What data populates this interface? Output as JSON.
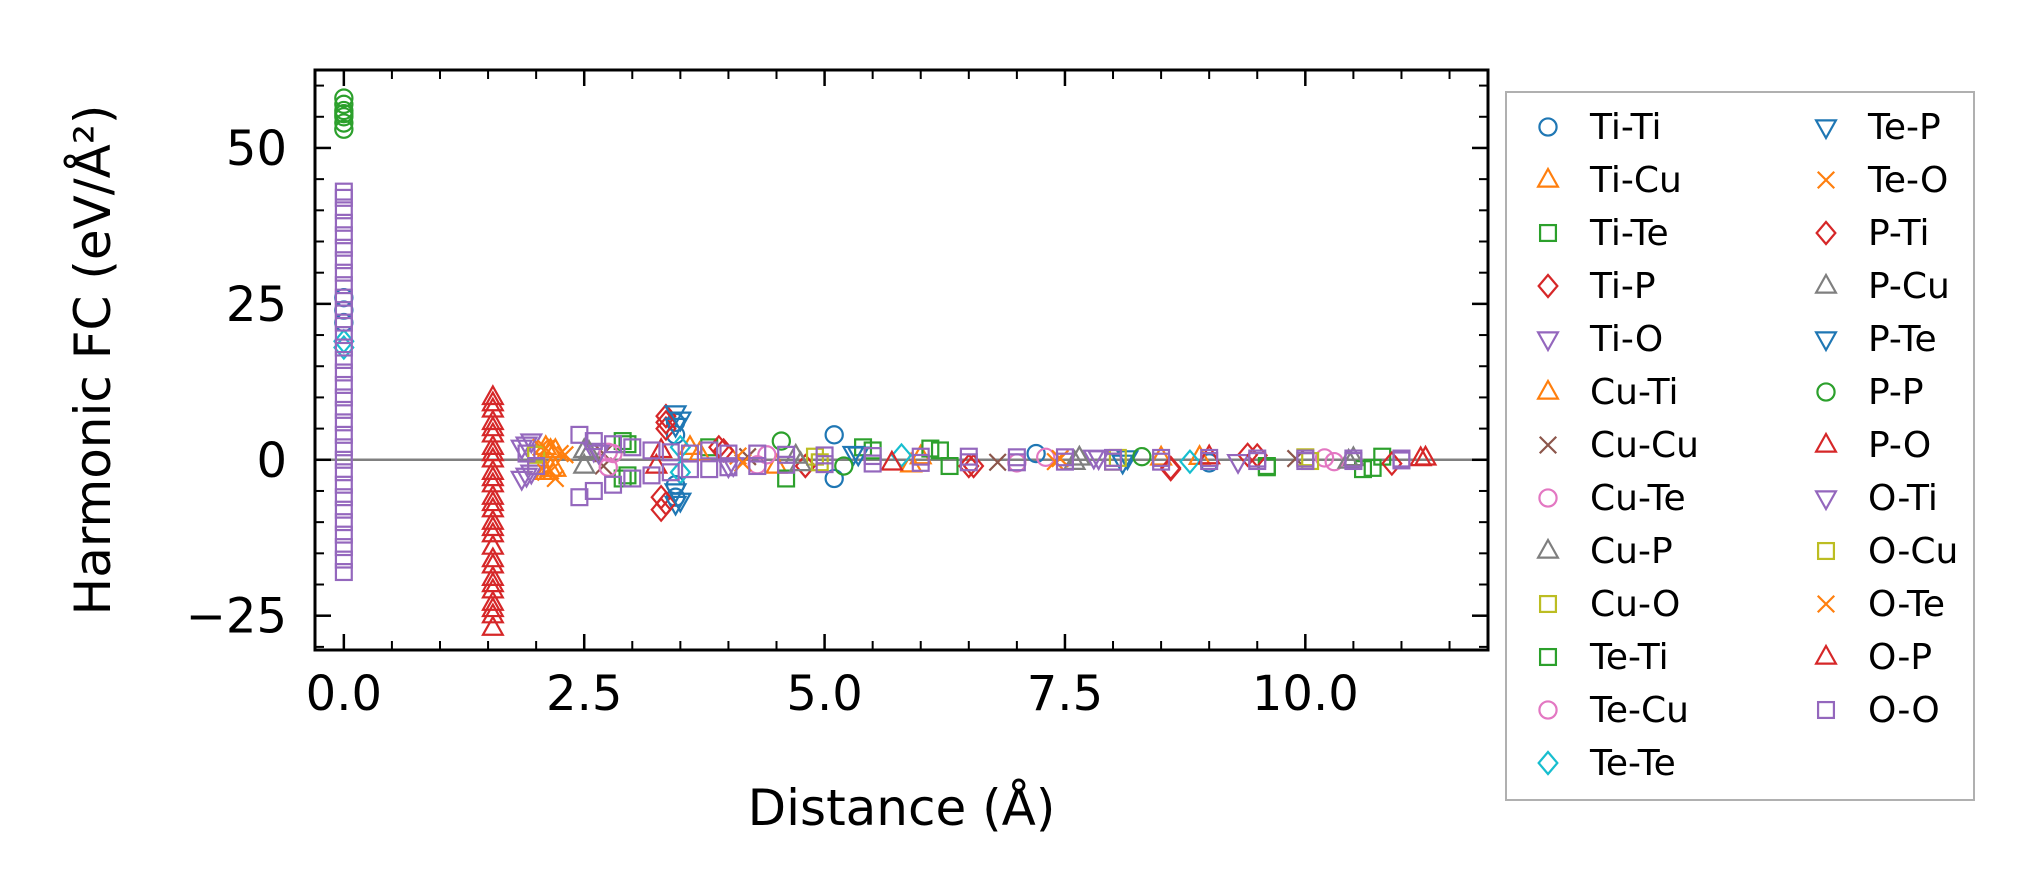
{
  "chart_data": {
    "type": "scatter",
    "xlabel": "Distance (Å)",
    "ylabel": "Harmonic FC (eV/Å²)",
    "xlim": [
      -0.3,
      11.9
    ],
    "ylim": [
      -30.5,
      62.5
    ],
    "xticks": [
      0.0,
      2.5,
      5.0,
      7.5,
      10.0
    ],
    "xtick_labels": [
      "0.0",
      "2.5",
      "5.0",
      "7.5",
      "10.0"
    ],
    "yticks": [
      50,
      25,
      0,
      -25
    ],
    "ytick_labels": [
      "50",
      "25",
      "0",
      "−25"
    ],
    "zero_line": 0,
    "legend_position": "outside-right",
    "legend_columns": 2,
    "series": [
      {
        "name": "Ti-Ti",
        "marker": "circle",
        "color": "#1f77b4",
        "points": [
          [
            0.0,
            26
          ],
          [
            0.0,
            24
          ],
          [
            0.0,
            22
          ],
          [
            3.45,
            6
          ],
          [
            3.45,
            4
          ],
          [
            3.45,
            -4
          ],
          [
            3.45,
            -6
          ],
          [
            5.1,
            4
          ],
          [
            5.1,
            -3
          ],
          [
            7.2,
            1
          ],
          [
            9.0,
            -0.5
          ]
        ]
      },
      {
        "name": "Ti-Cu",
        "marker": "triangle-up",
        "color": "#ff7f0e",
        "points": [
          [
            2.1,
            2
          ],
          [
            2.1,
            -2
          ],
          [
            2.2,
            1.5
          ],
          [
            2.2,
            -1.5
          ],
          [
            3.6,
            2
          ],
          [
            4.5,
            -1
          ],
          [
            6.0,
            0.5
          ],
          [
            8.5,
            0.3
          ]
        ]
      },
      {
        "name": "Ti-Te",
        "marker": "square",
        "color": "#2ca02c",
        "points": [
          [
            2.9,
            3
          ],
          [
            2.9,
            -3
          ],
          [
            3.8,
            2
          ],
          [
            4.6,
            -3
          ],
          [
            5.4,
            2
          ],
          [
            6.2,
            1.5
          ],
          [
            6.3,
            -1
          ],
          [
            9.6,
            -1
          ],
          [
            10.6,
            -1.5
          ],
          [
            10.8,
            0.5
          ]
        ]
      },
      {
        "name": "Ti-P",
        "marker": "diamond",
        "color": "#d62728",
        "points": [
          [
            3.35,
            7
          ],
          [
            3.35,
            5
          ],
          [
            3.3,
            -6
          ],
          [
            3.3,
            -8
          ],
          [
            3.9,
            2
          ],
          [
            4.8,
            -1
          ],
          [
            6.5,
            -1
          ],
          [
            8.6,
            -1.5
          ],
          [
            9.4,
            0.8
          ],
          [
            10.9,
            -0.6
          ]
        ]
      },
      {
        "name": "Ti-O",
        "marker": "triangle-down",
        "color": "#9467bd",
        "points": [
          [
            1.85,
            2
          ],
          [
            1.85,
            -3
          ],
          [
            1.95,
            3
          ],
          [
            1.95,
            -2
          ],
          [
            2.6,
            1.5
          ],
          [
            4.0,
            -1
          ],
          [
            7.8,
            0.4
          ],
          [
            9.3,
            -0.3
          ]
        ]
      },
      {
        "name": "Cu-Ti",
        "marker": "triangle-up",
        "color": "#ff7f0e",
        "points": [
          [
            2.15,
            1.5
          ],
          [
            2.15,
            -1.5
          ],
          [
            3.7,
            1
          ],
          [
            5.9,
            -0.8
          ],
          [
            8.9,
            0.4
          ]
        ]
      },
      {
        "name": "Cu-Cu",
        "marker": "x",
        "color": "#8c564b",
        "points": [
          [
            2.7,
            1
          ],
          [
            2.7,
            -1
          ],
          [
            4.2,
            0.5
          ],
          [
            6.8,
            -0.4
          ],
          [
            9.9,
            0.2
          ]
        ]
      },
      {
        "name": "Cu-Te",
        "marker": "circle",
        "color": "#e377c2",
        "points": [
          [
            2.75,
            1.2
          ],
          [
            2.75,
            -1.2
          ],
          [
            4.4,
            0.8
          ],
          [
            7.0,
            -0.5
          ],
          [
            10.2,
            0.3
          ]
        ]
      },
      {
        "name": "Cu-P",
        "marker": "triangle-up",
        "color": "#7f7f7f",
        "points": [
          [
            2.5,
            1.5
          ],
          [
            2.5,
            -1
          ],
          [
            4.7,
            0.6
          ],
          [
            7.6,
            -0.4
          ],
          [
            10.5,
            0.2
          ]
        ]
      },
      {
        "name": "Cu-O",
        "marker": "square",
        "color": "#bcbd22",
        "points": [
          [
            2.0,
            1
          ],
          [
            2.0,
            -1
          ],
          [
            4.9,
            0.5
          ],
          [
            8.0,
            -0.3
          ],
          [
            10.0,
            0.4
          ]
        ]
      },
      {
        "name": "Te-Ti",
        "marker": "square",
        "color": "#2ca02c",
        "points": [
          [
            2.95,
            2.5
          ],
          [
            2.95,
            -2.5
          ],
          [
            5.5,
            1.5
          ],
          [
            6.1,
            1.8
          ],
          [
            9.6,
            -1.2
          ],
          [
            10.7,
            -1.3
          ]
        ]
      },
      {
        "name": "Te-Cu",
        "marker": "circle",
        "color": "#e377c2",
        "points": [
          [
            2.8,
            1
          ],
          [
            4.3,
            -0.8
          ],
          [
            7.3,
            0.4
          ],
          [
            10.3,
            -0.3
          ]
        ]
      },
      {
        "name": "Te-Te",
        "marker": "diamond",
        "color": "#17becf",
        "points": [
          [
            0.0,
            19
          ],
          [
            0.0,
            18
          ],
          [
            3.5,
            2
          ],
          [
            3.5,
            -2
          ],
          [
            5.8,
            0.7
          ],
          [
            8.8,
            -0.3
          ]
        ]
      },
      {
        "name": "Te-P",
        "marker": "triangle-down",
        "color": "#1f77b4",
        "points": [
          [
            3.45,
            7.5
          ],
          [
            3.45,
            5.5
          ],
          [
            3.45,
            -5
          ],
          [
            3.45,
            -7
          ],
          [
            5.3,
            1
          ],
          [
            8.1,
            -0.4
          ]
        ]
      },
      {
        "name": "Te-O",
        "marker": "x",
        "color": "#ff7f0e",
        "points": [
          [
            2.05,
            2
          ],
          [
            2.1,
            -2
          ],
          [
            2.25,
            1
          ],
          [
            2.2,
            -3
          ],
          [
            4.1,
            0.6
          ],
          [
            7.4,
            -0.3
          ]
        ]
      },
      {
        "name": "P-Ti",
        "marker": "diamond",
        "color": "#d62728",
        "points": [
          [
            3.35,
            6
          ],
          [
            3.35,
            -7
          ],
          [
            3.95,
            1.5
          ],
          [
            6.55,
            -1
          ],
          [
            8.6,
            -1.3
          ],
          [
            9.5,
            0.7
          ]
        ]
      },
      {
        "name": "P-Cu",
        "marker": "triangle-up",
        "color": "#7f7f7f",
        "points": [
          [
            2.55,
            1.2
          ],
          [
            4.75,
            -0.6
          ],
          [
            7.65,
            0.3
          ],
          [
            10.45,
            -0.2
          ]
        ]
      },
      {
        "name": "P-Te",
        "marker": "triangle-down",
        "color": "#1f77b4",
        "points": [
          [
            3.5,
            6.5
          ],
          [
            3.5,
            -6.5
          ],
          [
            5.35,
            0.9
          ],
          [
            8.15,
            0.3
          ]
        ]
      },
      {
        "name": "P-P",
        "marker": "circle",
        "color": "#2ca02c",
        "points": [
          [
            0.0,
            58
          ],
          [
            0.0,
            57
          ],
          [
            0.0,
            56
          ],
          [
            0.0,
            55.5
          ],
          [
            0.0,
            55
          ],
          [
            0.0,
            54
          ],
          [
            0.0,
            53
          ],
          [
            4.55,
            3
          ],
          [
            5.2,
            -1
          ],
          [
            8.3,
            0.5
          ]
        ]
      },
      {
        "name": "P-O",
        "marker": "triangle-up",
        "color": "#d62728",
        "points": [
          [
            1.55,
            10
          ],
          [
            1.55,
            8
          ],
          [
            1.55,
            6
          ],
          [
            1.55,
            4
          ],
          [
            1.55,
            2
          ],
          [
            1.55,
            0
          ],
          [
            1.55,
            -2
          ],
          [
            1.55,
            -4
          ],
          [
            1.55,
            -6
          ],
          [
            1.55,
            -8
          ],
          [
            1.55,
            -10
          ],
          [
            1.55,
            -12
          ],
          [
            1.55,
            -14
          ],
          [
            1.55,
            -17
          ],
          [
            1.55,
            -19
          ],
          [
            1.55,
            -21
          ],
          [
            1.55,
            -23
          ],
          [
            1.55,
            -25
          ],
          [
            1.55,
            -27
          ],
          [
            3.3,
            1.5
          ],
          [
            5.7,
            -0.5
          ],
          [
            9.0,
            0.5
          ],
          [
            11.25,
            0.3
          ]
        ]
      },
      {
        "name": "O-Ti",
        "marker": "triangle-down",
        "color": "#9467bd",
        "points": [
          [
            1.9,
            2.5
          ],
          [
            1.9,
            -2.5
          ],
          [
            2.65,
            1.2
          ],
          [
            4.05,
            -0.8
          ],
          [
            7.85,
            0.3
          ]
        ]
      },
      {
        "name": "O-Cu",
        "marker": "square",
        "color": "#bcbd22",
        "points": [
          [
            2.0,
            0.8
          ],
          [
            4.95,
            -0.4
          ],
          [
            8.05,
            0.3
          ],
          [
            10.05,
            -0.2
          ]
        ]
      },
      {
        "name": "O-Te",
        "marker": "x",
        "color": "#ff7f0e",
        "points": [
          [
            2.1,
            1.8
          ],
          [
            2.15,
            -1.8
          ],
          [
            2.3,
            0.8
          ],
          [
            4.15,
            -0.5
          ],
          [
            7.45,
            0.2
          ]
        ]
      },
      {
        "name": "O-P",
        "marker": "triangle-up",
        "color": "#d62728",
        "points": [
          [
            1.55,
            9
          ],
          [
            1.55,
            5
          ],
          [
            1.55,
            1
          ],
          [
            1.55,
            -3
          ],
          [
            1.55,
            -7
          ],
          [
            1.55,
            -11
          ],
          [
            1.55,
            -16
          ],
          [
            1.55,
            -20
          ],
          [
            1.55,
            -24
          ],
          [
            3.25,
            -1
          ],
          [
            11.2,
            0.2
          ]
        ]
      },
      {
        "name": "O-O",
        "marker": "square",
        "color": "#9467bd",
        "points": [
          [
            0.0,
            43
          ],
          [
            0.0,
            42
          ],
          [
            0.0,
            40
          ],
          [
            0.0,
            38
          ],
          [
            0.0,
            36
          ],
          [
            0.0,
            34
          ],
          [
            0.0,
            32
          ],
          [
            0.0,
            30
          ],
          [
            0.0,
            28
          ],
          [
            0.0,
            26
          ],
          [
            0.0,
            24
          ],
          [
            0.0,
            22
          ],
          [
            0.0,
            20
          ],
          [
            0.0,
            18
          ],
          [
            0.0,
            16
          ],
          [
            0.0,
            14
          ],
          [
            0.0,
            12
          ],
          [
            0.0,
            10
          ],
          [
            0.0,
            8
          ],
          [
            0.0,
            6
          ],
          [
            0.0,
            4
          ],
          [
            0.0,
            2
          ],
          [
            0.0,
            0
          ],
          [
            0.0,
            -2
          ],
          [
            0.0,
            -4
          ],
          [
            0.0,
            -6
          ],
          [
            0.0,
            -8
          ],
          [
            0.0,
            -10
          ],
          [
            0.0,
            -12
          ],
          [
            0.0,
            -14
          ],
          [
            0.0,
            -16
          ],
          [
            0.0,
            -18
          ],
          [
            1.9,
            1
          ],
          [
            2.0,
            -1
          ],
          [
            2.45,
            4
          ],
          [
            2.45,
            -6
          ],
          [
            2.6,
            3
          ],
          [
            2.6,
            -5
          ],
          [
            2.8,
            2.5
          ],
          [
            2.8,
            -4
          ],
          [
            3.0,
            2
          ],
          [
            3.0,
            -3
          ],
          [
            3.2,
            1.5
          ],
          [
            3.2,
            -2.5
          ],
          [
            3.4,
            1.2
          ],
          [
            3.4,
            -2
          ],
          [
            3.6,
            1
          ],
          [
            3.6,
            -1.5
          ],
          [
            3.8,
            1.5
          ],
          [
            3.8,
            -1.5
          ],
          [
            4.0,
            1
          ],
          [
            4.0,
            -1.2
          ],
          [
            4.3,
            1
          ],
          [
            4.3,
            -1
          ],
          [
            4.6,
            0.8
          ],
          [
            4.6,
            -0.8
          ],
          [
            5.0,
            0.7
          ],
          [
            5.0,
            -0.7
          ],
          [
            5.5,
            0.6
          ],
          [
            5.5,
            -0.6
          ],
          [
            6.0,
            0.5
          ],
          [
            6.0,
            -0.5
          ],
          [
            6.5,
            0.5
          ],
          [
            6.5,
            -0.4
          ],
          [
            7.0,
            0.4
          ],
          [
            7.0,
            -0.4
          ],
          [
            7.5,
            0.4
          ],
          [
            7.5,
            -0.3
          ],
          [
            8.0,
            0.3
          ],
          [
            8.0,
            -0.3
          ],
          [
            8.5,
            0.3
          ],
          [
            8.5,
            -0.3
          ],
          [
            9.0,
            0.3
          ],
          [
            9.0,
            -0.2
          ],
          [
            9.5,
            0.2
          ],
          [
            9.5,
            -0.2
          ],
          [
            10.0,
            0.2
          ],
          [
            10.0,
            -0.2
          ],
          [
            10.5,
            0.2
          ],
          [
            10.5,
            -0.2
          ],
          [
            11.0,
            0.2
          ],
          [
            11.0,
            -0.1
          ]
        ]
      }
    ]
  }
}
